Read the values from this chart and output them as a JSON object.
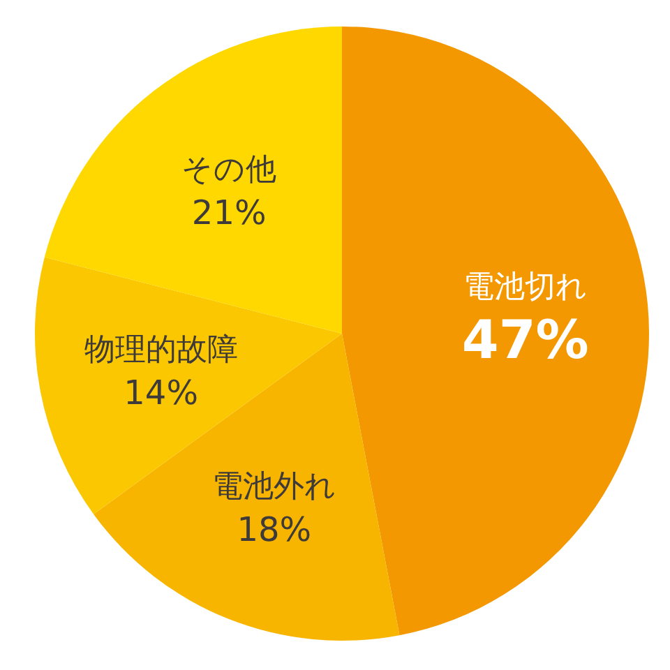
{
  "chart_data": {
    "type": "pie",
    "categories": [
      "電池切れ",
      "電池外れ",
      "物理的故障",
      "その他"
    ],
    "values": [
      47,
      18,
      14,
      21
    ],
    "colors": [
      "#f39800",
      "#f8b500",
      "#fbc700",
      "#ffd800"
    ],
    "value_labels": [
      "47%",
      "18%",
      "14%",
      "21%"
    ]
  }
}
